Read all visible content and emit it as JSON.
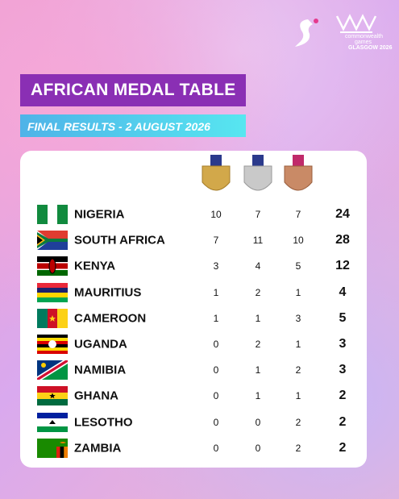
{
  "header": {
    "title": "AFRICAN MEDAL TABLE",
    "subtitle": "FINAL RESULTS - 2 AUGUST 2026"
  },
  "logo": {
    "line1": "commonwealth",
    "line2": "games",
    "line3": "GLASGOW 2026"
  },
  "table": {
    "rows": [
      [
        "NIGERIA",
        10,
        7,
        7,
        24
      ],
      [
        "SOUTH AFRICA",
        7,
        11,
        10,
        28
      ],
      [
        "KENYA",
        3,
        4,
        5,
        12
      ],
      [
        "MAURITIUS",
        1,
        2,
        1,
        4
      ],
      [
        "CAMEROON",
        1,
        1,
        3,
        5
      ],
      [
        "UGANDA",
        0,
        2,
        1,
        3
      ],
      [
        "NAMIBIA",
        0,
        1,
        2,
        3
      ],
      [
        "GHANA",
        0,
        1,
        1,
        2
      ],
      [
        "LESOTHO",
        0,
        0,
        2,
        2
      ],
      [
        "ZAMBIA",
        0,
        0,
        2,
        2
      ]
    ]
  }
}
